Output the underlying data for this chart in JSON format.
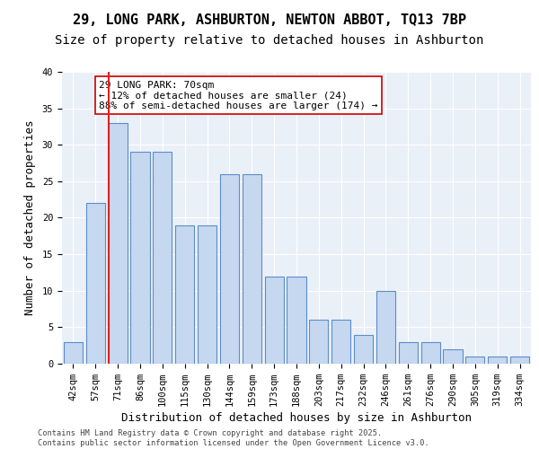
{
  "title_line1": "29, LONG PARK, ASHBURTON, NEWTON ABBOT, TQ13 7BP",
  "title_line2": "Size of property relative to detached houses in Ashburton",
  "xlabel": "Distribution of detached houses by size in Ashburton",
  "ylabel": "Number of detached properties",
  "categories": [
    "42sqm",
    "57sqm",
    "71sqm",
    "86sqm",
    "100sqm",
    "115sqm",
    "130sqm",
    "144sqm",
    "159sqm",
    "173sqm",
    "188sqm",
    "203sqm",
    "217sqm",
    "232sqm",
    "246sqm",
    "261sqm",
    "276sqm",
    "290sqm",
    "305sqm",
    "319sqm",
    "334sqm"
  ],
  "bar_values": [
    3,
    22,
    33,
    29,
    29,
    19,
    19,
    26,
    26,
    12,
    12,
    6,
    6,
    4,
    10,
    3,
    3,
    2,
    1,
    1,
    1
  ],
  "bar_color": "#c5d8f0",
  "bar_edge_color": "#5b8dc8",
  "vline_x": 1.575,
  "vline_color": "#dd2222",
  "annotation_text": "29 LONG PARK: 70sqm\n← 12% of detached houses are smaller (24)\n88% of semi-detached houses are larger (174) →",
  "annotation_box_color": "#ffffff",
  "annotation_box_edge_color": "#cc0000",
  "ylim": [
    0,
    40
  ],
  "yticks": [
    0,
    5,
    10,
    15,
    20,
    25,
    30,
    35,
    40
  ],
  "bg_color": "#eaf0f8",
  "grid_color": "#ffffff",
  "footer_text": "Contains HM Land Registry data © Crown copyright and database right 2025.\nContains public sector information licensed under the Open Government Licence v3.0.",
  "title_fontsize": 11,
  "axis_label_fontsize": 9,
  "tick_fontsize": 7.5,
  "annotation_fontsize": 8
}
